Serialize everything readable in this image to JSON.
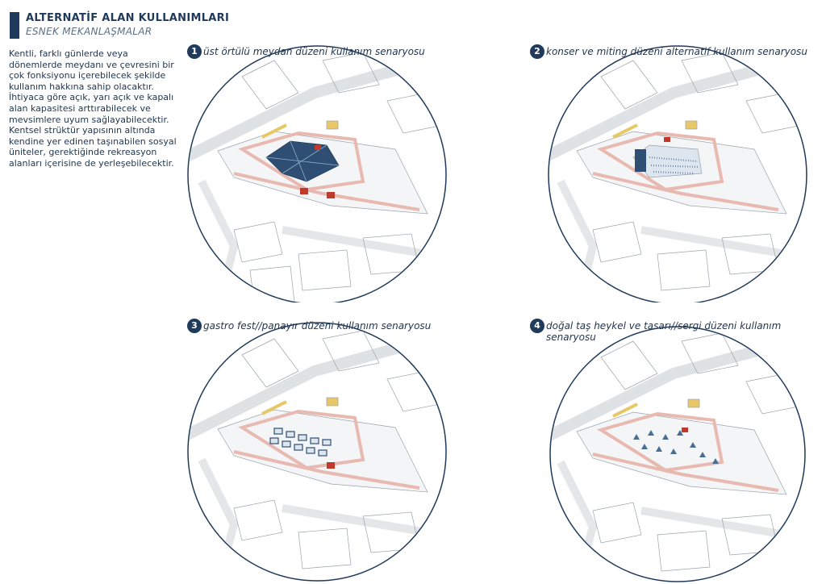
{
  "header": {
    "title": "ALTERNATİF ALAN KULLANIMLARI",
    "subtitle": "ESNEK MEKANLAŞMALAR"
  },
  "intro": {
    "paragraph1": "Kentli, farklı günlerde veya dönemlerde meydanı ve çevresini bir çok fonksiyonu içerebilecek şekilde kullanım hakkına sahip olacaktır.",
    "paragraph2": "İhtiyaca göre açık, yarı açık ve kapalı alan kapasitesi arttırabilecek ve mevsimlere uyum sağlayabilecektir.",
    "paragraph3": "Kentsel strüktür yapısının altında kendine yer edinen taşınabilen sosyal üniteler, gerektiğinde rekreasyon alanları içerisine de yerleşebilecektir."
  },
  "scenarios": [
    {
      "number": "1",
      "label": "üst örtülü meydan düzeni kullanım senaryosu"
    },
    {
      "number": "2",
      "label": "konser ve miting düzeni alternatif kullanım senaryosu"
    },
    {
      "number": "3",
      "label": "gastro fest//panayır düzeni kullanım senaryosu"
    },
    {
      "number": "4",
      "label": "doğal taş heykel ve tasarı//sergi düzeni kullanım senaryosu"
    }
  ],
  "colors": {
    "primary": "#1f3a5a",
    "accent_red": "#c0392b",
    "accent_pink": "#e8b9b0",
    "accent_yellow": "#e8c766",
    "line": "#9aa3ab"
  }
}
